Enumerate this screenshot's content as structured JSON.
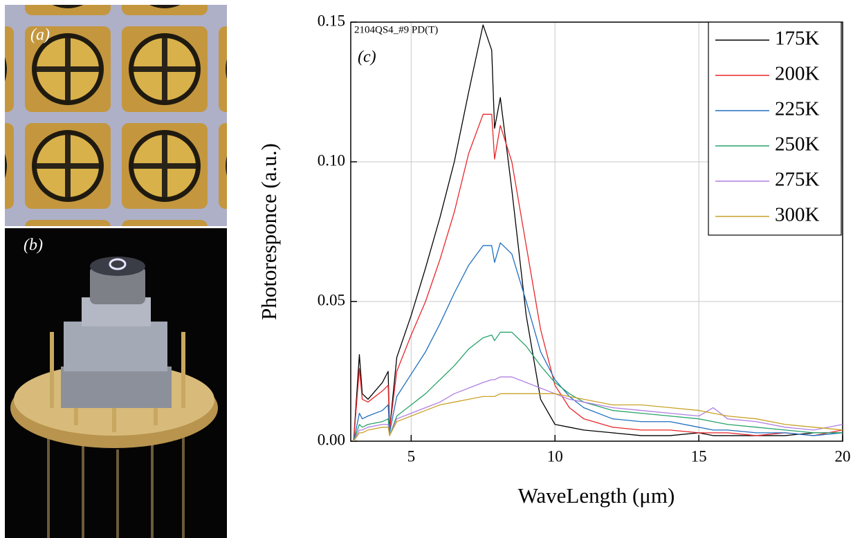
{
  "panel_labels": {
    "a": "(a)",
    "b": "(b)"
  },
  "chart_data": {
    "type": "line",
    "annotations": [
      "2104QS4_#9 PD(T)",
      "(c)"
    ],
    "x_label": "WaveLength (μm)",
    "y_label": "Photoresponce (a.u.)",
    "x": [
      3.0,
      3.2,
      3.3,
      3.5,
      4.0,
      4.2,
      4.25,
      4.5,
      5,
      5.5,
      6,
      6.5,
      7,
      7.5,
      7.8,
      7.9,
      8.1,
      8.5,
      9,
      9.5,
      10,
      10.5,
      11,
      12,
      13,
      14,
      15,
      15.5,
      16,
      17,
      18,
      19,
      20
    ],
    "series": [
      {
        "name": "175K",
        "color": "#000000",
        "values": [
          0,
          0.031,
          0.017,
          0.015,
          0.021,
          0.025,
          0.004,
          0.03,
          0.045,
          0.062,
          0.08,
          0.1,
          0.125,
          0.149,
          0.14,
          0.112,
          0.123,
          0.09,
          0.045,
          0.015,
          0.006,
          0.005,
          0.004,
          0.003,
          0.002,
          0.002,
          0.003,
          0.002,
          0.002,
          0.002,
          0.002,
          0.003,
          0.003
        ]
      },
      {
        "name": "200K",
        "color": "#e8262a",
        "values": [
          0,
          0.026,
          0.015,
          0.014,
          0.018,
          0.02,
          0.004,
          0.025,
          0.038,
          0.05,
          0.065,
          0.082,
          0.103,
          0.117,
          0.117,
          0.101,
          0.113,
          0.1,
          0.07,
          0.04,
          0.02,
          0.012,
          0.008,
          0.005,
          0.004,
          0.004,
          0.003,
          0.003,
          0.003,
          0.002,
          0.003,
          0.002,
          0.004
        ]
      },
      {
        "name": "225K",
        "color": "#1f6fbf",
        "values": [
          0,
          0.01,
          0.008,
          0.009,
          0.011,
          0.013,
          0.003,
          0.016,
          0.024,
          0.032,
          0.042,
          0.053,
          0.063,
          0.07,
          0.07,
          0.064,
          0.071,
          0.067,
          0.05,
          0.032,
          0.022,
          0.016,
          0.012,
          0.008,
          0.007,
          0.007,
          0.005,
          0.004,
          0.004,
          0.003,
          0.003,
          0.002,
          0.003
        ]
      },
      {
        "name": "250K",
        "color": "#27a36a",
        "values": [
          0,
          0.006,
          0.005,
          0.006,
          0.007,
          0.008,
          0.002,
          0.009,
          0.013,
          0.017,
          0.022,
          0.027,
          0.033,
          0.037,
          0.038,
          0.036,
          0.039,
          0.039,
          0.034,
          0.027,
          0.021,
          0.017,
          0.014,
          0.011,
          0.01,
          0.009,
          0.008,
          0.007,
          0.006,
          0.005,
          0.004,
          0.003,
          0.003
        ]
      },
      {
        "name": "275K",
        "color": "#b07fe0",
        "values": [
          0,
          0.004,
          0.004,
          0.005,
          0.006,
          0.006,
          0.002,
          0.008,
          0.01,
          0.012,
          0.014,
          0.017,
          0.019,
          0.021,
          0.022,
          0.022,
          0.023,
          0.023,
          0.021,
          0.019,
          0.017,
          0.015,
          0.014,
          0.012,
          0.011,
          0.01,
          0.009,
          0.012,
          0.008,
          0.007,
          0.005,
          0.004,
          0.006
        ]
      },
      {
        "name": "300K",
        "color": "#c9a227",
        "values": [
          0,
          0.003,
          0.003,
          0.004,
          0.005,
          0.005,
          0.002,
          0.007,
          0.009,
          0.011,
          0.013,
          0.014,
          0.015,
          0.016,
          0.016,
          0.016,
          0.017,
          0.017,
          0.017,
          0.017,
          0.017,
          0.016,
          0.015,
          0.013,
          0.013,
          0.012,
          0.011,
          0.01,
          0.009,
          0.008,
          0.006,
          0.005,
          0.004
        ]
      }
    ],
    "xlim": [
      2.9,
      20
    ],
    "xticks": [
      5,
      10,
      15,
      20
    ],
    "ylim": [
      0,
      0.15
    ],
    "yticks": [
      {
        "value": 0,
        "label": "0.00"
      },
      {
        "value": 0.05,
        "label": "0.05"
      },
      {
        "value": 0.1,
        "label": "0.10"
      },
      {
        "value": 0.15,
        "label": "0.15"
      }
    ],
    "grid": true,
    "legend": "upper right"
  }
}
